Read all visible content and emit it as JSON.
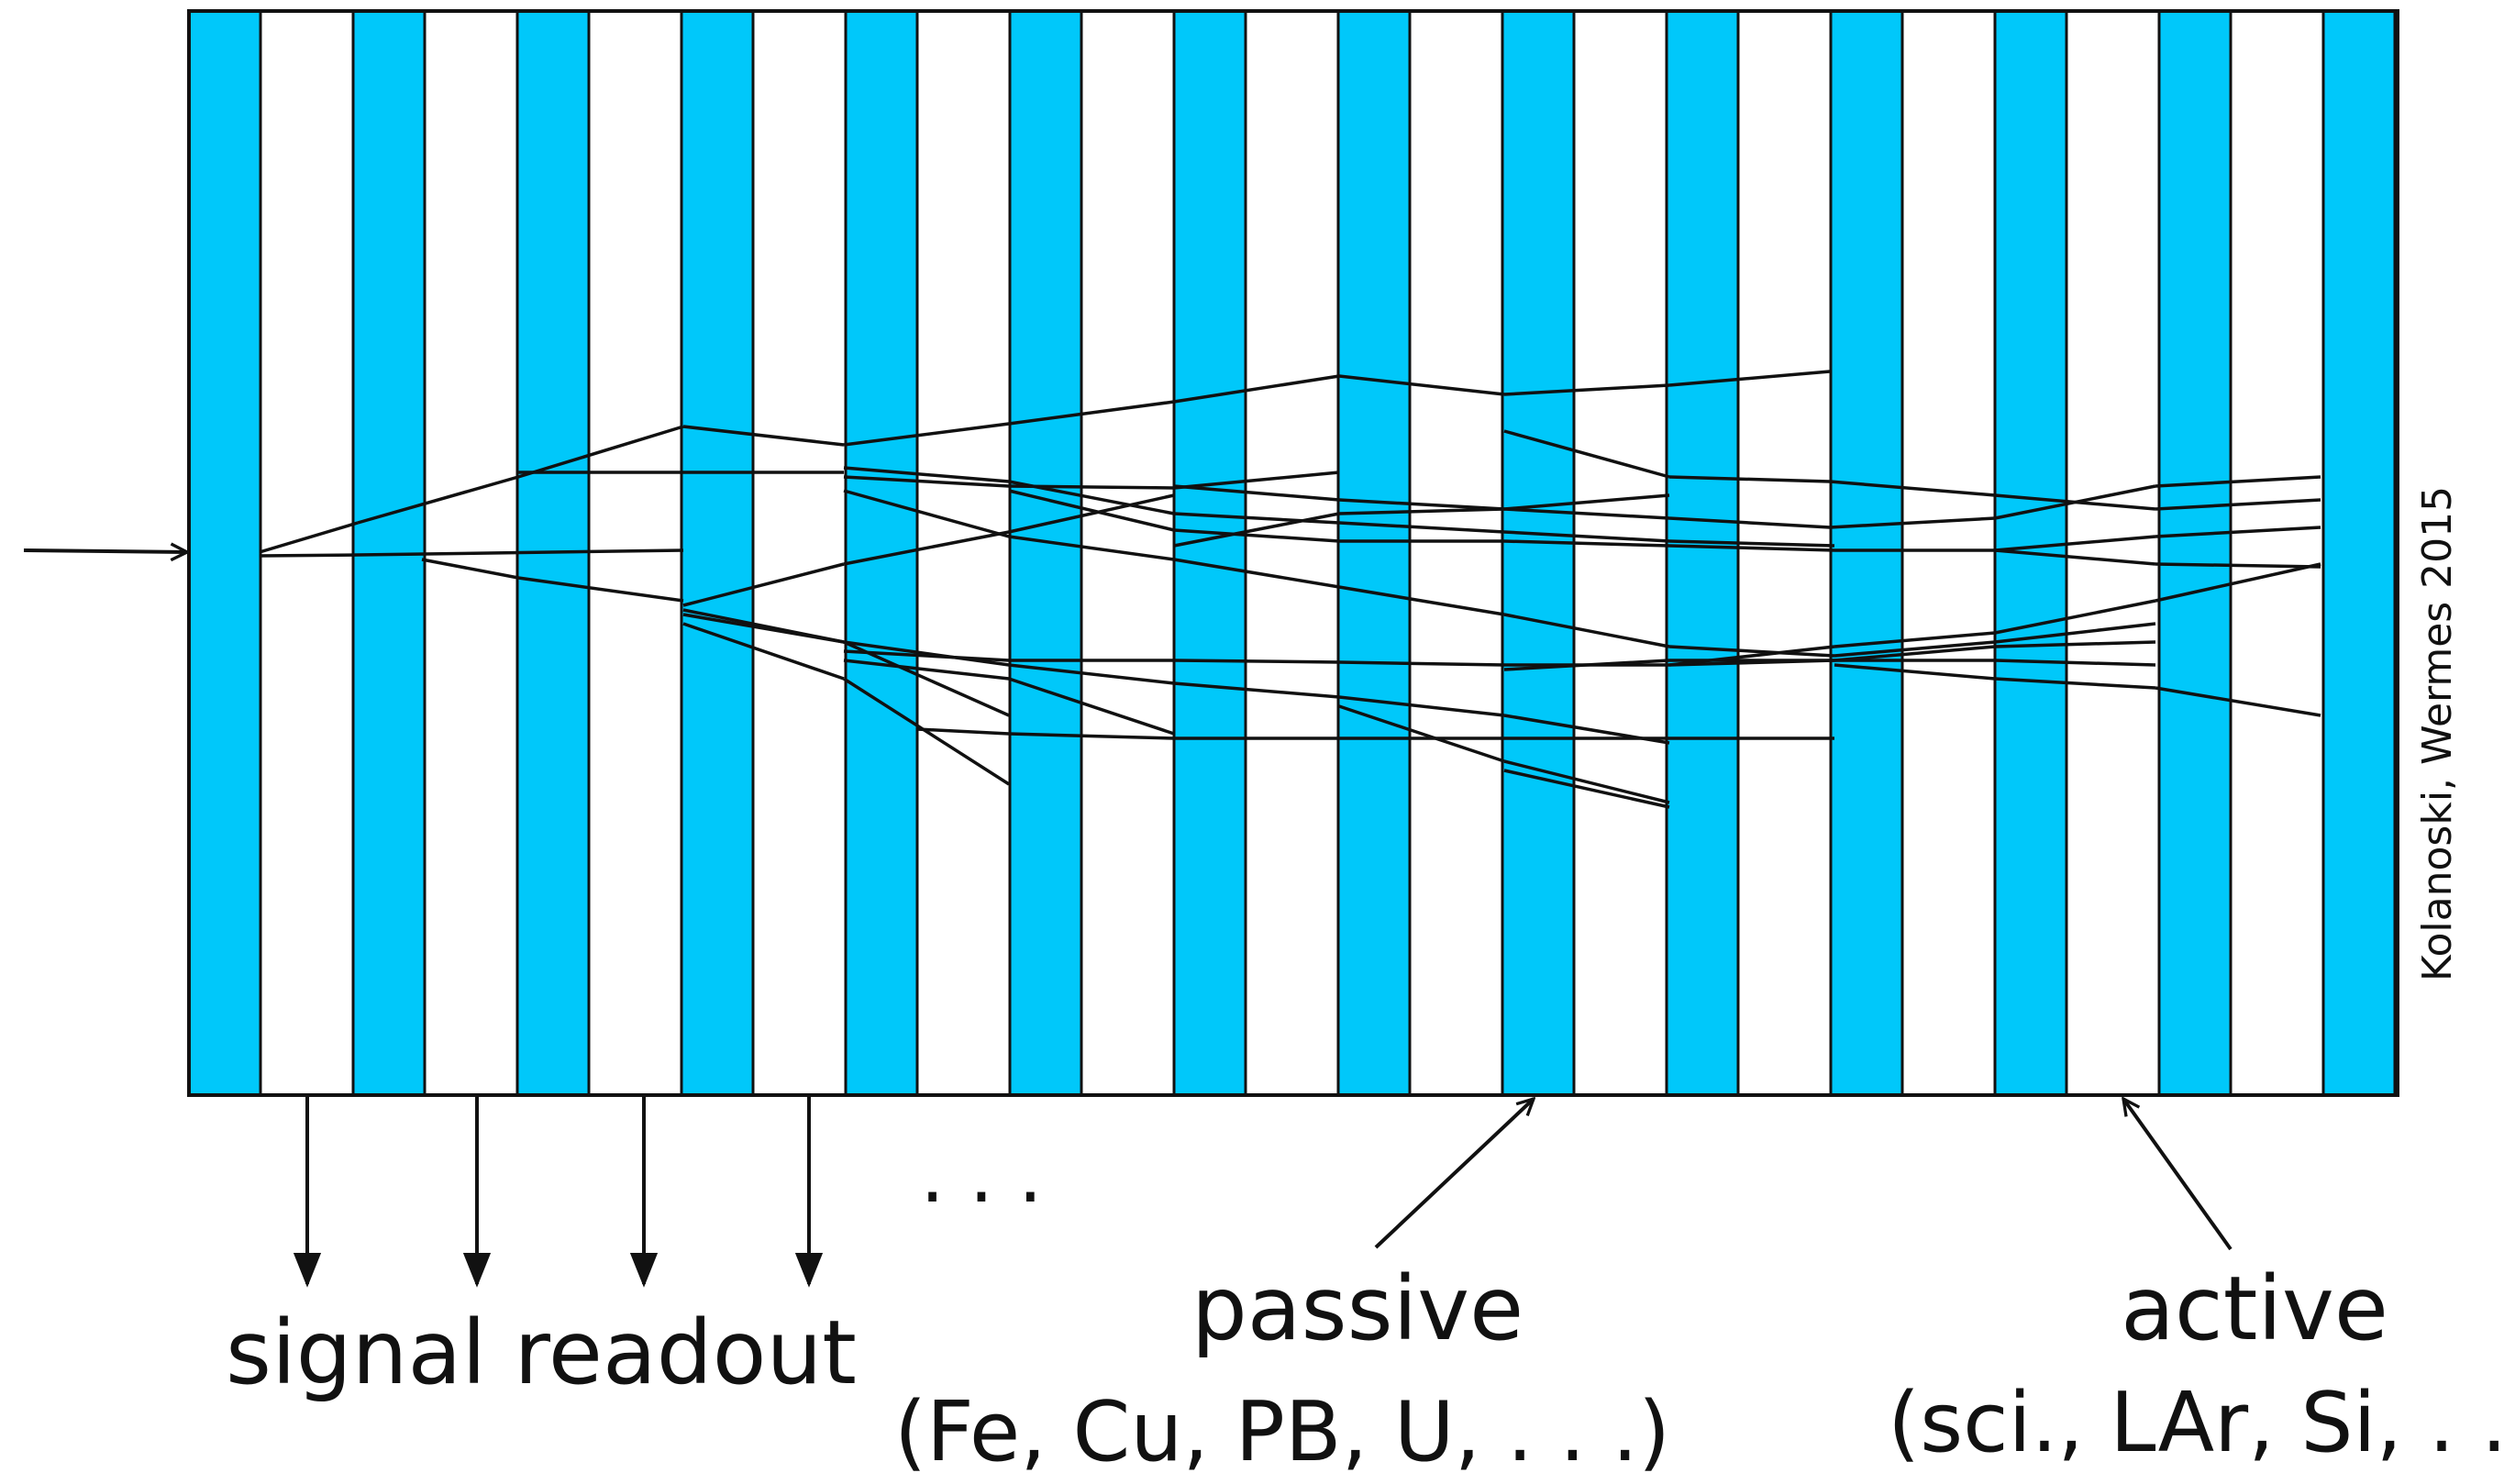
{
  "labels": {
    "signal_readout": "signal readout",
    "dots": ". . .",
    "passive": "passive",
    "passive_examples": "(Fe, Cu, PB, U, . . .)",
    "active": "active",
    "active_examples": "(sci., LAr, Si, . . .)",
    "credit": "Kolanoski, Wermes 2015"
  },
  "colors": {
    "active_layer": "#00c8fa",
    "passive_layer": "#ffffff",
    "outline": "#111111",
    "lines": "#111111"
  },
  "layers": {
    "active_count": 14,
    "passive_count": 13
  },
  "shower_segments": [
    [
      [
        283,
        602
      ],
      [
        390,
        570
      ]
    ],
    [
      [
        390,
        570
      ],
      [
        565,
        520
      ]
    ],
    [
      [
        565,
        520
      ],
      [
        745,
        465
      ]
    ],
    [
      [
        283,
        606
      ],
      [
        390,
        605
      ]
    ],
    [
      [
        390,
        605
      ],
      [
        745,
        600
      ]
    ],
    [
      [
        460,
        610
      ],
      [
        565,
        630
      ]
    ],
    [
      [
        565,
        630
      ],
      [
        745,
        655
      ]
    ],
    [
      [
        565,
        515
      ],
      [
        745,
        515
      ]
    ],
    [
      [
        745,
        515
      ],
      [
        920,
        515
      ]
    ],
    [
      [
        745,
        465
      ],
      [
        920,
        485
      ]
    ],
    [
      [
        920,
        485
      ],
      [
        1100,
        462
      ]
    ],
    [
      [
        1100,
        462
      ],
      [
        1280,
        438
      ]
    ],
    [
      [
        1280,
        438
      ],
      [
        1460,
        410
      ]
    ],
    [
      [
        1460,
        410
      ],
      [
        1640,
        430
      ]
    ],
    [
      [
        1640,
        430
      ],
      [
        1820,
        420
      ]
    ],
    [
      [
        1820,
        420
      ],
      [
        1995,
        405
      ]
    ],
    [
      [
        920,
        510
      ],
      [
        1100,
        525
      ]
    ],
    [
      [
        1100,
        525
      ],
      [
        1280,
        560
      ]
    ],
    [
      [
        1280,
        560
      ],
      [
        1460,
        570
      ]
    ],
    [
      [
        1460,
        570
      ],
      [
        1640,
        580
      ]
    ],
    [
      [
        1640,
        580
      ],
      [
        1820,
        590
      ]
    ],
    [
      [
        1820,
        590
      ],
      [
        2000,
        595
      ]
    ],
    [
      [
        920,
        520
      ],
      [
        1100,
        530
      ]
    ],
    [
      [
        1100,
        530
      ],
      [
        1280,
        532
      ]
    ],
    [
      [
        1280,
        532
      ],
      [
        1460,
        515
      ]
    ],
    [
      [
        1280,
        530
      ],
      [
        1460,
        545
      ]
    ],
    [
      [
        1460,
        545
      ],
      [
        1640,
        555
      ]
    ],
    [
      [
        1640,
        555
      ],
      [
        1820,
        565
      ]
    ],
    [
      [
        1820,
        565
      ],
      [
        1995,
        575
      ]
    ],
    [
      [
        1995,
        575
      ],
      [
        2175,
        565
      ]
    ],
    [
      [
        2175,
        565
      ],
      [
        2350,
        530
      ]
    ],
    [
      [
        2350,
        530
      ],
      [
        2530,
        520
      ]
    ],
    [
      [
        1640,
        470
      ],
      [
        1820,
        520
      ]
    ],
    [
      [
        1820,
        520
      ],
      [
        1995,
        525
      ]
    ],
    [
      [
        1995,
        525
      ],
      [
        2175,
        540
      ]
    ],
    [
      [
        2175,
        540
      ],
      [
        2350,
        555
      ]
    ],
    [
      [
        2350,
        555
      ],
      [
        2530,
        545
      ]
    ],
    [
      [
        2175,
        600
      ],
      [
        2350,
        585
      ]
    ],
    [
      [
        2350,
        585
      ],
      [
        2530,
        575
      ]
    ],
    [
      [
        1100,
        535
      ],
      [
        1280,
        578
      ]
    ],
    [
      [
        1280,
        578
      ],
      [
        1460,
        590
      ]
    ],
    [
      [
        1460,
        590
      ],
      [
        1640,
        590
      ]
    ],
    [
      [
        1640,
        590
      ],
      [
        1820,
        595
      ]
    ],
    [
      [
        1820,
        595
      ],
      [
        2000,
        600
      ]
    ],
    [
      [
        2000,
        600
      ],
      [
        2175,
        600
      ]
    ],
    [
      [
        2175,
        600
      ],
      [
        2350,
        615
      ]
    ],
    [
      [
        2350,
        615
      ],
      [
        2530,
        618
      ]
    ],
    [
      [
        920,
        535
      ],
      [
        1100,
        585
      ]
    ],
    [
      [
        1100,
        585
      ],
      [
        1280,
        610
      ]
    ],
    [
      [
        1280,
        610
      ],
      [
        1460,
        640
      ]
    ],
    [
      [
        1460,
        640
      ],
      [
        1640,
        670
      ]
    ],
    [
      [
        1640,
        670
      ],
      [
        1820,
        705
      ]
    ],
    [
      [
        1820,
        705
      ],
      [
        2000,
        715
      ]
    ],
    [
      [
        2000,
        715
      ],
      [
        2175,
        700
      ]
    ],
    [
      [
        2175,
        700
      ],
      [
        2350,
        680
      ]
    ],
    [
      [
        1280,
        595
      ],
      [
        1460,
        560
      ]
    ],
    [
      [
        1460,
        560
      ],
      [
        1640,
        555
      ]
    ],
    [
      [
        1640,
        555
      ],
      [
        1820,
        540
      ]
    ],
    [
      [
        745,
        660
      ],
      [
        920,
        615
      ]
    ],
    [
      [
        920,
        615
      ],
      [
        1100,
        580
      ]
    ],
    [
      [
        1100,
        580
      ],
      [
        1280,
        540
      ]
    ],
    [
      [
        745,
        665
      ],
      [
        920,
        700
      ]
    ],
    [
      [
        920,
        700
      ],
      [
        1100,
        725
      ]
    ],
    [
      [
        1100,
        725
      ],
      [
        1280,
        745
      ]
    ],
    [
      [
        1280,
        745
      ],
      [
        1460,
        760
      ]
    ],
    [
      [
        1460,
        760
      ],
      [
        1640,
        780
      ]
    ],
    [
      [
        1640,
        780
      ],
      [
        1820,
        810
      ]
    ],
    [
      [
        920,
        710
      ],
      [
        1100,
        720
      ]
    ],
    [
      [
        1100,
        720
      ],
      [
        1280,
        720
      ]
    ],
    [
      [
        1280,
        720
      ],
      [
        1460,
        722
      ]
    ],
    [
      [
        1460,
        722
      ],
      [
        1640,
        725
      ]
    ],
    [
      [
        1640,
        725
      ],
      [
        1820,
        725
      ]
    ],
    [
      [
        1820,
        725
      ],
      [
        2000,
        720
      ]
    ],
    [
      [
        2000,
        720
      ],
      [
        2175,
        720
      ]
    ],
    [
      [
        2175,
        720
      ],
      [
        2350,
        725
      ]
    ],
    [
      [
        1820,
        725
      ],
      [
        2000,
        705
      ]
    ],
    [
      [
        2000,
        705
      ],
      [
        2175,
        690
      ]
    ],
    [
      [
        2175,
        690
      ],
      [
        2350,
        655
      ]
    ],
    [
      [
        2350,
        655
      ],
      [
        2530,
        615
      ]
    ],
    [
      [
        2000,
        725
      ],
      [
        2175,
        740
      ]
    ],
    [
      [
        2175,
        740
      ],
      [
        2350,
        750
      ]
    ],
    [
      [
        2350,
        750
      ],
      [
        2530,
        780
      ]
    ],
    [
      [
        1640,
        730
      ],
      [
        1820,
        720
      ]
    ],
    [
      [
        1820,
        720
      ],
      [
        2000,
        720
      ]
    ],
    [
      [
        2000,
        720
      ],
      [
        2175,
        705
      ]
    ],
    [
      [
        2175,
        705
      ],
      [
        2350,
        700
      ]
    ],
    [
      [
        745,
        670
      ],
      [
        920,
        700
      ]
    ],
    [
      [
        920,
        700
      ],
      [
        1100,
        780
      ]
    ],
    [
      [
        745,
        680
      ],
      [
        920,
        740
      ]
    ],
    [
      [
        920,
        740
      ],
      [
        1100,
        855
      ]
    ],
    [
      [
        920,
        720
      ],
      [
        1100,
        740
      ]
    ],
    [
      [
        1100,
        740
      ],
      [
        1280,
        800
      ]
    ],
    [
      [
        1000,
        795
      ],
      [
        1100,
        800
      ]
    ],
    [
      [
        1100,
        800
      ],
      [
        1280,
        805
      ]
    ],
    [
      [
        1280,
        805
      ],
      [
        1460,
        805
      ]
    ],
    [
      [
        1460,
        805
      ],
      [
        1640,
        805
      ]
    ],
    [
      [
        1640,
        805
      ],
      [
        1820,
        805
      ]
    ],
    [
      [
        1820,
        805
      ],
      [
        2000,
        805
      ]
    ],
    [
      [
        1460,
        770
      ],
      [
        1640,
        830
      ]
    ],
    [
      [
        1640,
        830
      ],
      [
        1820,
        875
      ]
    ],
    [
      [
        1820,
        880
      ],
      [
        1640,
        840
      ]
    ]
  ]
}
